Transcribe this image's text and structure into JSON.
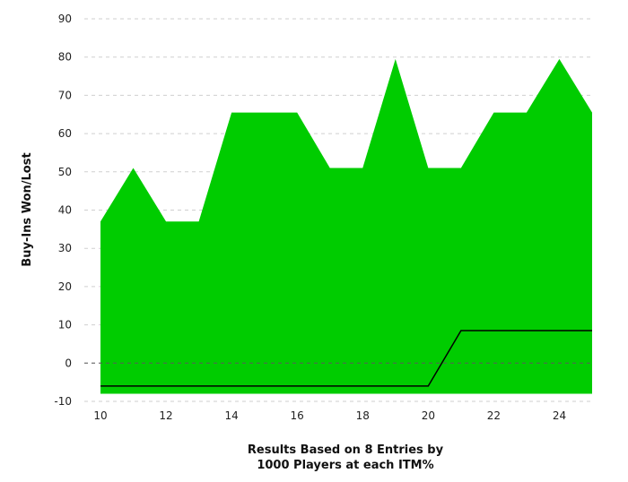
{
  "chart_data": {
    "type": "area",
    "ylabel": "Buy-Ins Won/Lost",
    "xlabel_line1": "Results Based on 8 Entries by",
    "xlabel_line2": "1000 Players at each ITM%",
    "xlim": [
      10,
      25
    ],
    "ylim": [
      -10,
      90
    ],
    "x_ticks": [
      10,
      12,
      14,
      16,
      18,
      20,
      22,
      24
    ],
    "y_ticks": [
      -10,
      0,
      10,
      20,
      30,
      40,
      50,
      60,
      70,
      80,
      90
    ],
    "grid": "horizontal dashed",
    "series": [
      {
        "kind": "area",
        "color": "#00cc00",
        "baseline": -8,
        "x": [
          10,
          11,
          12,
          13,
          14,
          15,
          16,
          17,
          18,
          19,
          20,
          21,
          22,
          23,
          24,
          25
        ],
        "values": [
          37,
          51,
          37,
          37,
          65.5,
          65.5,
          65.5,
          51,
          51,
          79.5,
          51,
          51,
          65.5,
          65.5,
          79.5,
          65.5
        ]
      },
      {
        "kind": "line",
        "color": "#000000",
        "x": [
          10,
          20,
          21,
          25
        ],
        "values": [
          -6,
          -6,
          8.5,
          8.5
        ]
      }
    ]
  }
}
